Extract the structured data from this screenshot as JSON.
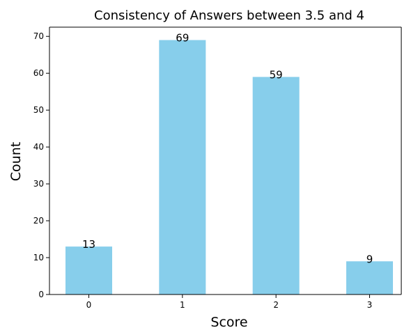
{
  "chart_data": {
    "type": "bar",
    "title": "Consistency of Answers between 3.5 and 4",
    "xlabel": "Score",
    "ylabel": "Count",
    "categories": [
      "0",
      "1",
      "2",
      "3"
    ],
    "values": [
      13,
      69,
      59,
      9
    ],
    "data_labels": [
      "13",
      "69",
      "59",
      "9"
    ],
    "yticks": [
      "0",
      "10",
      "20",
      "30",
      "40",
      "50",
      "60",
      "70"
    ],
    "ylim": [
      0,
      72.5
    ],
    "bar_color": "#87CEEB",
    "grid": false,
    "legend": "none"
  }
}
